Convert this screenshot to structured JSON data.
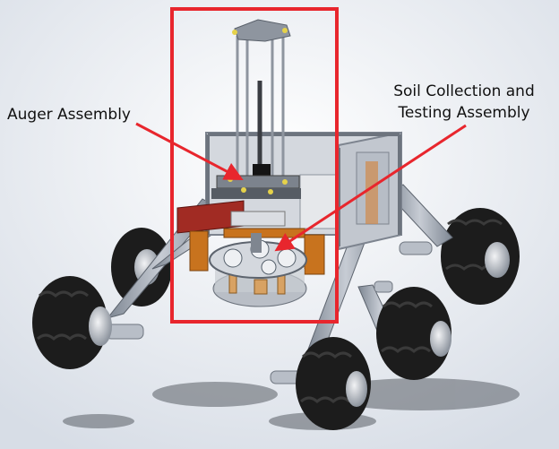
{
  "labels": {
    "auger": "Auger Assembly",
    "soil_line1": "Soil Collection and",
    "soil_line2": "Testing Assembly"
  },
  "colors": {
    "highlight": "#e8262d",
    "arrow": "#e8262d",
    "frame": "#9aa3ae",
    "tire": "#1c1c1c",
    "hub": "#c9ced6",
    "bracket": "#c8731e",
    "tray": "#a12b23"
  }
}
